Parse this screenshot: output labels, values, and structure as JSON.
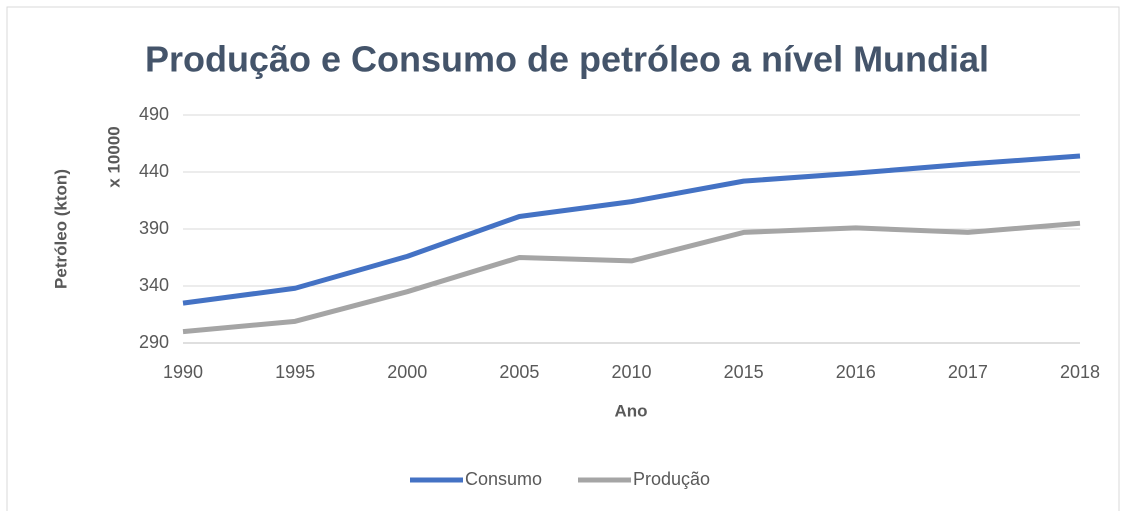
{
  "chart_data": {
    "type": "line",
    "title": "Produção e Consumo de petróleo a nível Mundial",
    "x_label": "Ano",
    "y_label": "Petróleo (kton)",
    "y_display_unit": "x 10000",
    "categories": [
      "1990",
      "1995",
      "2000",
      "2005",
      "2010",
      "2015",
      "2016",
      "2017",
      "2018"
    ],
    "series": [
      {
        "name": "Consumo",
        "color": "#4472c4",
        "values": [
          325,
          338,
          366,
          401,
          414,
          432,
          439,
          447,
          454
        ]
      },
      {
        "name": "Produção",
        "color": "#a5a5a5",
        "values": [
          300,
          309,
          335,
          365,
          362,
          387,
          391,
          387,
          395
        ]
      }
    ],
    "ylim": [
      290,
      490
    ],
    "yticks": [
      290,
      340,
      390,
      440,
      490
    ],
    "grid": true,
    "legend": "bottom"
  }
}
